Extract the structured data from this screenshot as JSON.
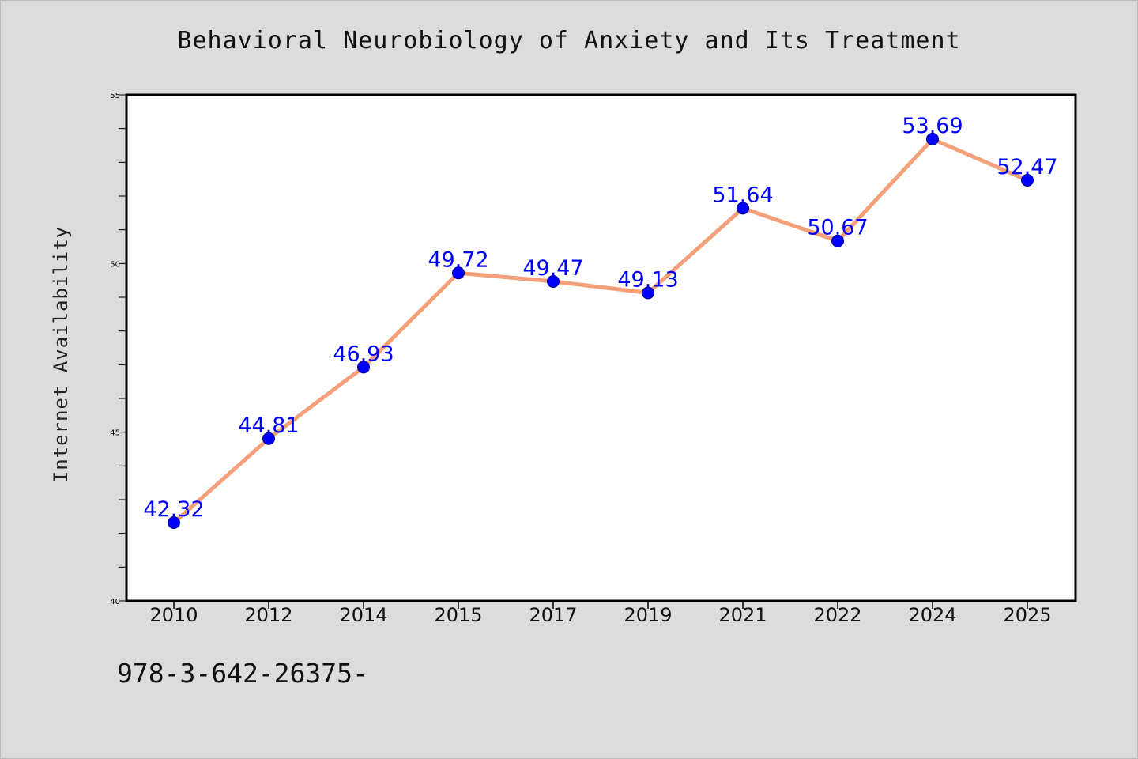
{
  "page": {
    "background": "#dcdcdc",
    "footer_text": "978-3-642-26375-"
  },
  "chart_data": {
    "type": "line",
    "title": "Behavioral Neurobiology of Anxiety and Its Treatment",
    "xlabel": "",
    "ylabel": "Internet Availability",
    "categories": [
      "2010",
      "2012",
      "2014",
      "2015",
      "2017",
      "2019",
      "2021",
      "2022",
      "2024",
      "2025"
    ],
    "series": [
      {
        "values": [
          42.32,
          44.81,
          46.93,
          49.72,
          49.47,
          49.13,
          51.64,
          50.67,
          53.69,
          52.47
        ],
        "labels": [
          "42.32",
          "44.81",
          "46.93",
          "49.72",
          "49.47",
          "49.13",
          "51.64",
          "50.67",
          "53.69",
          "52.47"
        ],
        "line_color": "#f4a07a",
        "marker_color": "#0000ff"
      }
    ],
    "ylim": [
      40,
      55
    ],
    "y_ticks": [
      "40",
      "45",
      "50",
      "55"
    ],
    "y_minor_step": 1,
    "grid": false,
    "legend": "none"
  }
}
